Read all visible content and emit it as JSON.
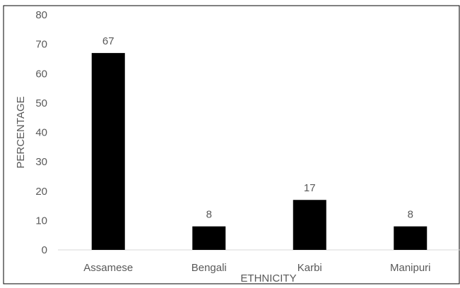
{
  "chart_data": {
    "type": "bar",
    "categories": [
      "Assamese",
      "Bengali",
      "Karbi",
      "Manipuri"
    ],
    "values": [
      67,
      8,
      17,
      8
    ],
    "data_labels": [
      "67",
      "8",
      "17",
      "8"
    ],
    "title": "",
    "xlabel": "ETHNICITY",
    "ylabel": "PERCENTAGE",
    "ylim": [
      0,
      80
    ],
    "yticks": [
      0,
      10,
      20,
      30,
      40,
      50,
      60,
      70,
      80
    ],
    "grid": false,
    "legend": "none",
    "colors": {
      "bar": "#000000",
      "text": "#595959",
      "axis": "#d9d9d9",
      "frame": "#000000"
    }
  }
}
